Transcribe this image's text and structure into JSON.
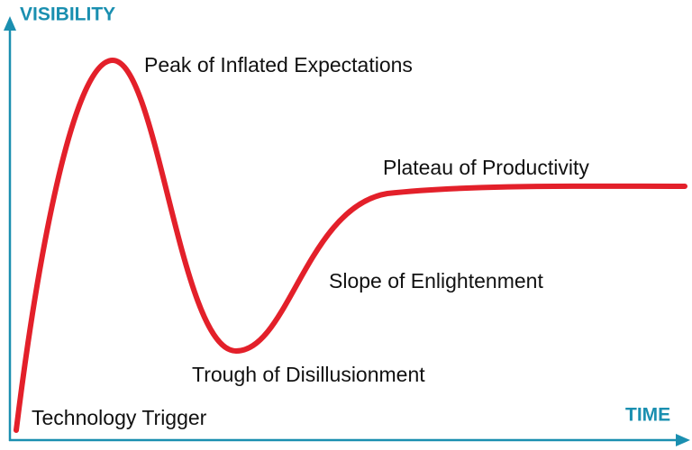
{
  "axes": {
    "y_label": "VISIBILITY",
    "x_label": "TIME"
  },
  "phases": [
    "Technology Trigger",
    "Peak of Inflated Expectations",
    "Trough of Disillusionment",
    "Slope of Enlightenment",
    "Plateau of Productivity"
  ]
}
